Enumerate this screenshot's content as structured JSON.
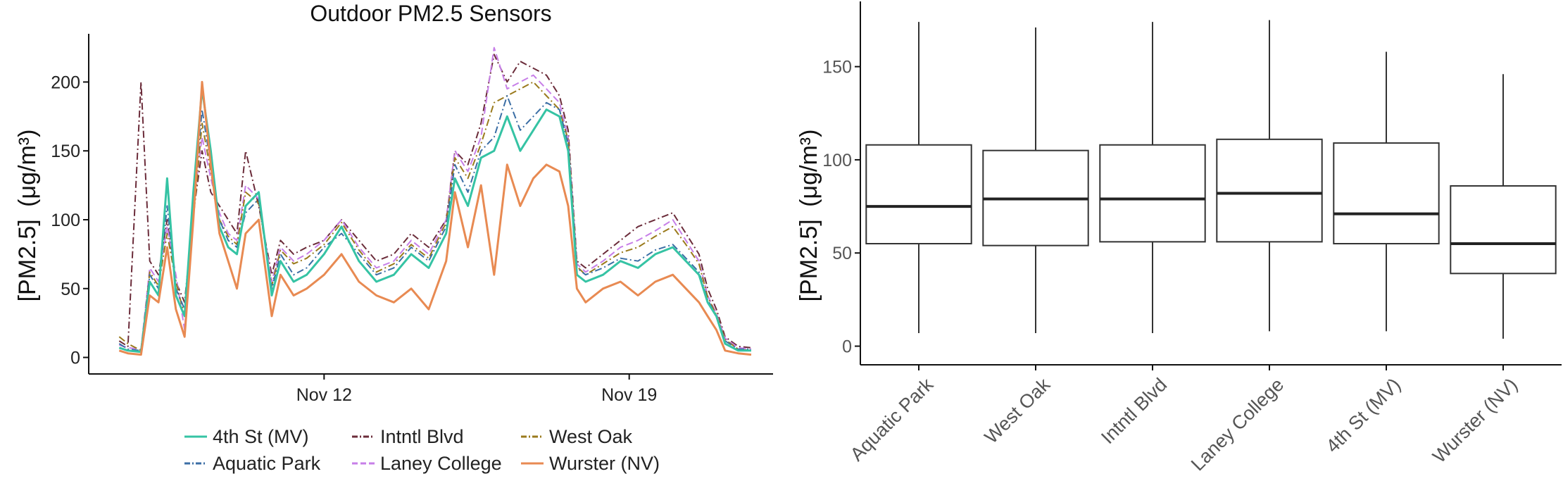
{
  "chart_data": [
    {
      "type": "line",
      "title": "Outdoor PM2.5 Sensors",
      "ylabel_main": "[PM2.5]",
      "ylabel_unit": "(μg/m³)",
      "x_ticks": [
        {
          "day": 12,
          "label": "Nov 12"
        },
        {
          "day": 19,
          "label": "Nov 19"
        }
      ],
      "xlim_days": [
        6.6,
        22.3
      ],
      "y_ticks": [
        0,
        50,
        100,
        150,
        200
      ],
      "ylim": [
        -12,
        235
      ],
      "grid": false,
      "legend_position": "bottom",
      "legend": [
        {
          "name": "4th St (MV)",
          "color": "#35c3a4",
          "dash": "solid"
        },
        {
          "name": "Aquatic Park",
          "color": "#3b6ea5",
          "dash": "dashdot"
        },
        {
          "name": "Intntl Blvd",
          "color": "#6b2c3a",
          "dash": "dashdot"
        },
        {
          "name": "Laney College",
          "color": "#c77fe8",
          "dash": "dash"
        },
        {
          "name": "West Oak",
          "color": "#9a7a1c",
          "dash": "dashdot"
        },
        {
          "name": "Wurster (NV)",
          "color": "#e88a52",
          "dash": "solid"
        }
      ],
      "series": [
        {
          "name": "4th St (MV)",
          "x": [
            7.3,
            7.5,
            7.8,
            8.0,
            8.2,
            8.4,
            8.6,
            8.8,
            9.0,
            9.2,
            9.4,
            9.6,
            9.8,
            10.0,
            10.2,
            10.5,
            10.8,
            11.0,
            11.3,
            11.6,
            12.0,
            12.4,
            12.8,
            13.2,
            13.6,
            14.0,
            14.4,
            14.8,
            15.0,
            15.3,
            15.6,
            15.9,
            16.2,
            16.5,
            16.8,
            17.1,
            17.4,
            17.6,
            17.8,
            18.0,
            18.4,
            18.8,
            19.2,
            19.6,
            20.0,
            20.3,
            20.6,
            20.8,
            21.0,
            21.2,
            21.5,
            21.8
          ],
          "y": [
            7,
            5,
            4,
            55,
            45,
            130,
            45,
            30,
            120,
            195,
            150,
            95,
            80,
            75,
            110,
            120,
            45,
            70,
            55,
            60,
            75,
            95,
            70,
            55,
            60,
            75,
            65,
            90,
            130,
            110,
            145,
            150,
            175,
            150,
            165,
            180,
            175,
            150,
            60,
            55,
            60,
            70,
            65,
            75,
            80,
            70,
            60,
            40,
            30,
            10,
            5,
            5
          ]
        },
        {
          "name": "Aquatic Park",
          "x": [
            7.3,
            7.5,
            7.8,
            8.0,
            8.2,
            8.4,
            8.6,
            8.8,
            9.0,
            9.2,
            9.4,
            9.6,
            9.8,
            10.0,
            10.2,
            10.5,
            10.8,
            11.0,
            11.3,
            11.6,
            12.0,
            12.4,
            12.8,
            13.2,
            13.6,
            14.0,
            14.4,
            14.8,
            15.0,
            15.3,
            15.6,
            15.9,
            16.2,
            16.5,
            16.8,
            17.1,
            17.4,
            17.6,
            17.8,
            18.0,
            18.4,
            18.8,
            19.2,
            19.6,
            20.0,
            20.3,
            20.6,
            20.8,
            21.0,
            21.2,
            21.5,
            21.8
          ],
          "y": [
            10,
            6,
            5,
            60,
            50,
            110,
            50,
            35,
            110,
            180,
            140,
            100,
            85,
            80,
            105,
            115,
            50,
            75,
            60,
            65,
            80,
            90,
            75,
            60,
            65,
            80,
            70,
            95,
            140,
            120,
            150,
            160,
            190,
            165,
            175,
            185,
            180,
            155,
            65,
            60,
            65,
            72,
            70,
            78,
            82,
            72,
            62,
            42,
            30,
            12,
            6,
            6
          ]
        },
        {
          "name": "Intntl Blvd",
          "x": [
            7.3,
            7.5,
            7.8,
            8.0,
            8.2,
            8.4,
            8.6,
            8.8,
            9.0,
            9.2,
            9.4,
            9.6,
            9.8,
            10.0,
            10.2,
            10.5,
            10.8,
            11.0,
            11.3,
            11.6,
            12.0,
            12.4,
            12.8,
            13.2,
            13.6,
            14.0,
            14.4,
            14.8,
            15.0,
            15.3,
            15.6,
            15.9,
            16.2,
            16.5,
            16.8,
            17.1,
            17.4,
            17.6,
            17.8,
            18.0,
            18.4,
            18.8,
            19.2,
            19.6,
            20.0,
            20.3,
            20.6,
            20.8,
            21.0,
            21.2,
            21.5,
            21.8
          ],
          "y": [
            12,
            8,
            200,
            70,
            60,
            100,
            55,
            40,
            105,
            150,
            120,
            110,
            100,
            90,
            150,
            110,
            60,
            85,
            75,
            80,
            85,
            100,
            85,
            70,
            75,
            90,
            80,
            100,
            150,
            140,
            170,
            220,
            200,
            215,
            210,
            205,
            190,
            165,
            70,
            65,
            75,
            85,
            95,
            100,
            105,
            90,
            75,
            50,
            35,
            15,
            8,
            7
          ]
        },
        {
          "name": "Laney College",
          "x": [
            7.3,
            7.5,
            7.8,
            8.0,
            8.2,
            8.4,
            8.6,
            8.8,
            9.0,
            9.2,
            9.4,
            9.6,
            9.8,
            10.0,
            10.2,
            10.5,
            10.8,
            11.0,
            11.3,
            11.6,
            12.0,
            12.4,
            12.8,
            13.2,
            13.6,
            14.0,
            14.4,
            14.8,
            15.0,
            15.3,
            15.6,
            15.9,
            16.2,
            16.5,
            16.8,
            17.1,
            17.4,
            17.6,
            17.8,
            18.0,
            18.4,
            18.8,
            19.2,
            19.6,
            20.0,
            20.3,
            20.6,
            20.8,
            21.0,
            21.2,
            21.5,
            21.8
          ],
          "y": [
            9,
            7,
            6,
            65,
            55,
            95,
            60,
            20,
            110,
            160,
            130,
            105,
            90,
            85,
            125,
            115,
            55,
            80,
            70,
            75,
            85,
            100,
            80,
            65,
            70,
            85,
            75,
            100,
            150,
            135,
            160,
            225,
            195,
            200,
            205,
            195,
            185,
            160,
            68,
            62,
            70,
            80,
            85,
            92,
            100,
            85,
            70,
            45,
            32,
            14,
            7,
            6
          ]
        },
        {
          "name": "West Oak",
          "x": [
            7.3,
            7.5,
            7.8,
            8.0,
            8.2,
            8.4,
            8.6,
            8.8,
            9.0,
            9.2,
            9.4,
            9.6,
            9.8,
            10.0,
            10.2,
            10.5,
            10.8,
            11.0,
            11.3,
            11.6,
            12.0,
            12.4,
            12.8,
            13.2,
            13.6,
            14.0,
            14.4,
            14.8,
            15.0,
            15.3,
            15.6,
            15.9,
            16.2,
            16.5,
            16.8,
            17.1,
            17.4,
            17.6,
            17.8,
            18.0,
            18.4,
            18.8,
            19.2,
            19.6,
            20.0,
            20.3,
            20.6,
            20.8,
            21.0,
            21.2,
            21.5,
            21.8
          ],
          "y": [
            15,
            10,
            5,
            62,
            52,
            90,
            55,
            30,
            100,
            170,
            135,
            100,
            88,
            82,
            120,
            112,
            52,
            78,
            68,
            72,
            82,
            98,
            78,
            62,
            68,
            82,
            72,
            98,
            145,
            130,
            155,
            185,
            190,
            195,
            200,
            190,
            180,
            158,
            66,
            60,
            68,
            76,
            80,
            88,
            95,
            82,
            68,
            44,
            31,
            13,
            6,
            5
          ]
        },
        {
          "name": "Wurster (NV)",
          "x": [
            7.3,
            7.5,
            7.8,
            8.0,
            8.2,
            8.4,
            8.6,
            8.8,
            9.0,
            9.2,
            9.4,
            9.6,
            9.8,
            10.0,
            10.2,
            10.5,
            10.8,
            11.0,
            11.3,
            11.6,
            12.0,
            12.4,
            12.8,
            13.2,
            13.6,
            14.0,
            14.4,
            14.8,
            15.0,
            15.3,
            15.6,
            15.9,
            16.2,
            16.5,
            16.8,
            17.1,
            17.4,
            17.6,
            17.8,
            18.0,
            18.4,
            18.8,
            19.2,
            19.6,
            20.0,
            20.3,
            20.6,
            20.8,
            21.0,
            21.2,
            21.5,
            21.8
          ],
          "y": [
            5,
            3,
            2,
            45,
            40,
            80,
            35,
            15,
            100,
            200,
            140,
            90,
            70,
            50,
            90,
            100,
            30,
            60,
            45,
            50,
            60,
            75,
            55,
            45,
            40,
            50,
            35,
            70,
            120,
            80,
            125,
            60,
            140,
            110,
            130,
            140,
            135,
            110,
            50,
            40,
            50,
            55,
            45,
            55,
            60,
            50,
            40,
            30,
            20,
            5,
            3,
            2
          ]
        }
      ]
    },
    {
      "type": "box",
      "ylabel_main": "[PM2.5]",
      "ylabel_unit": "(μg/m³)",
      "y_ticks": [
        0,
        50,
        100,
        150
      ],
      "ylim": [
        -10,
        185
      ],
      "grid": false,
      "boxes": [
        {
          "category": "Aquatic Park",
          "whisker_low": 7,
          "q1": 55,
          "median": 75,
          "q3": 108,
          "whisker_high": 174
        },
        {
          "category": "West Oak",
          "whisker_low": 7,
          "q1": 54,
          "median": 79,
          "q3": 105,
          "whisker_high": 171
        },
        {
          "category": "Intntl Blvd",
          "whisker_low": 7,
          "q1": 56,
          "median": 79,
          "q3": 108,
          "whisker_high": 174
        },
        {
          "category": "Laney College",
          "whisker_low": 8,
          "q1": 56,
          "median": 82,
          "q3": 111,
          "whisker_high": 175
        },
        {
          "category": "4th St (MV)",
          "whisker_low": 8,
          "q1": 55,
          "median": 71,
          "q3": 109,
          "whisker_high": 158
        },
        {
          "category": "Wurster (NV)",
          "whisker_low": 4,
          "q1": 39,
          "median": 55,
          "q3": 86,
          "whisker_high": 146
        }
      ]
    }
  ]
}
